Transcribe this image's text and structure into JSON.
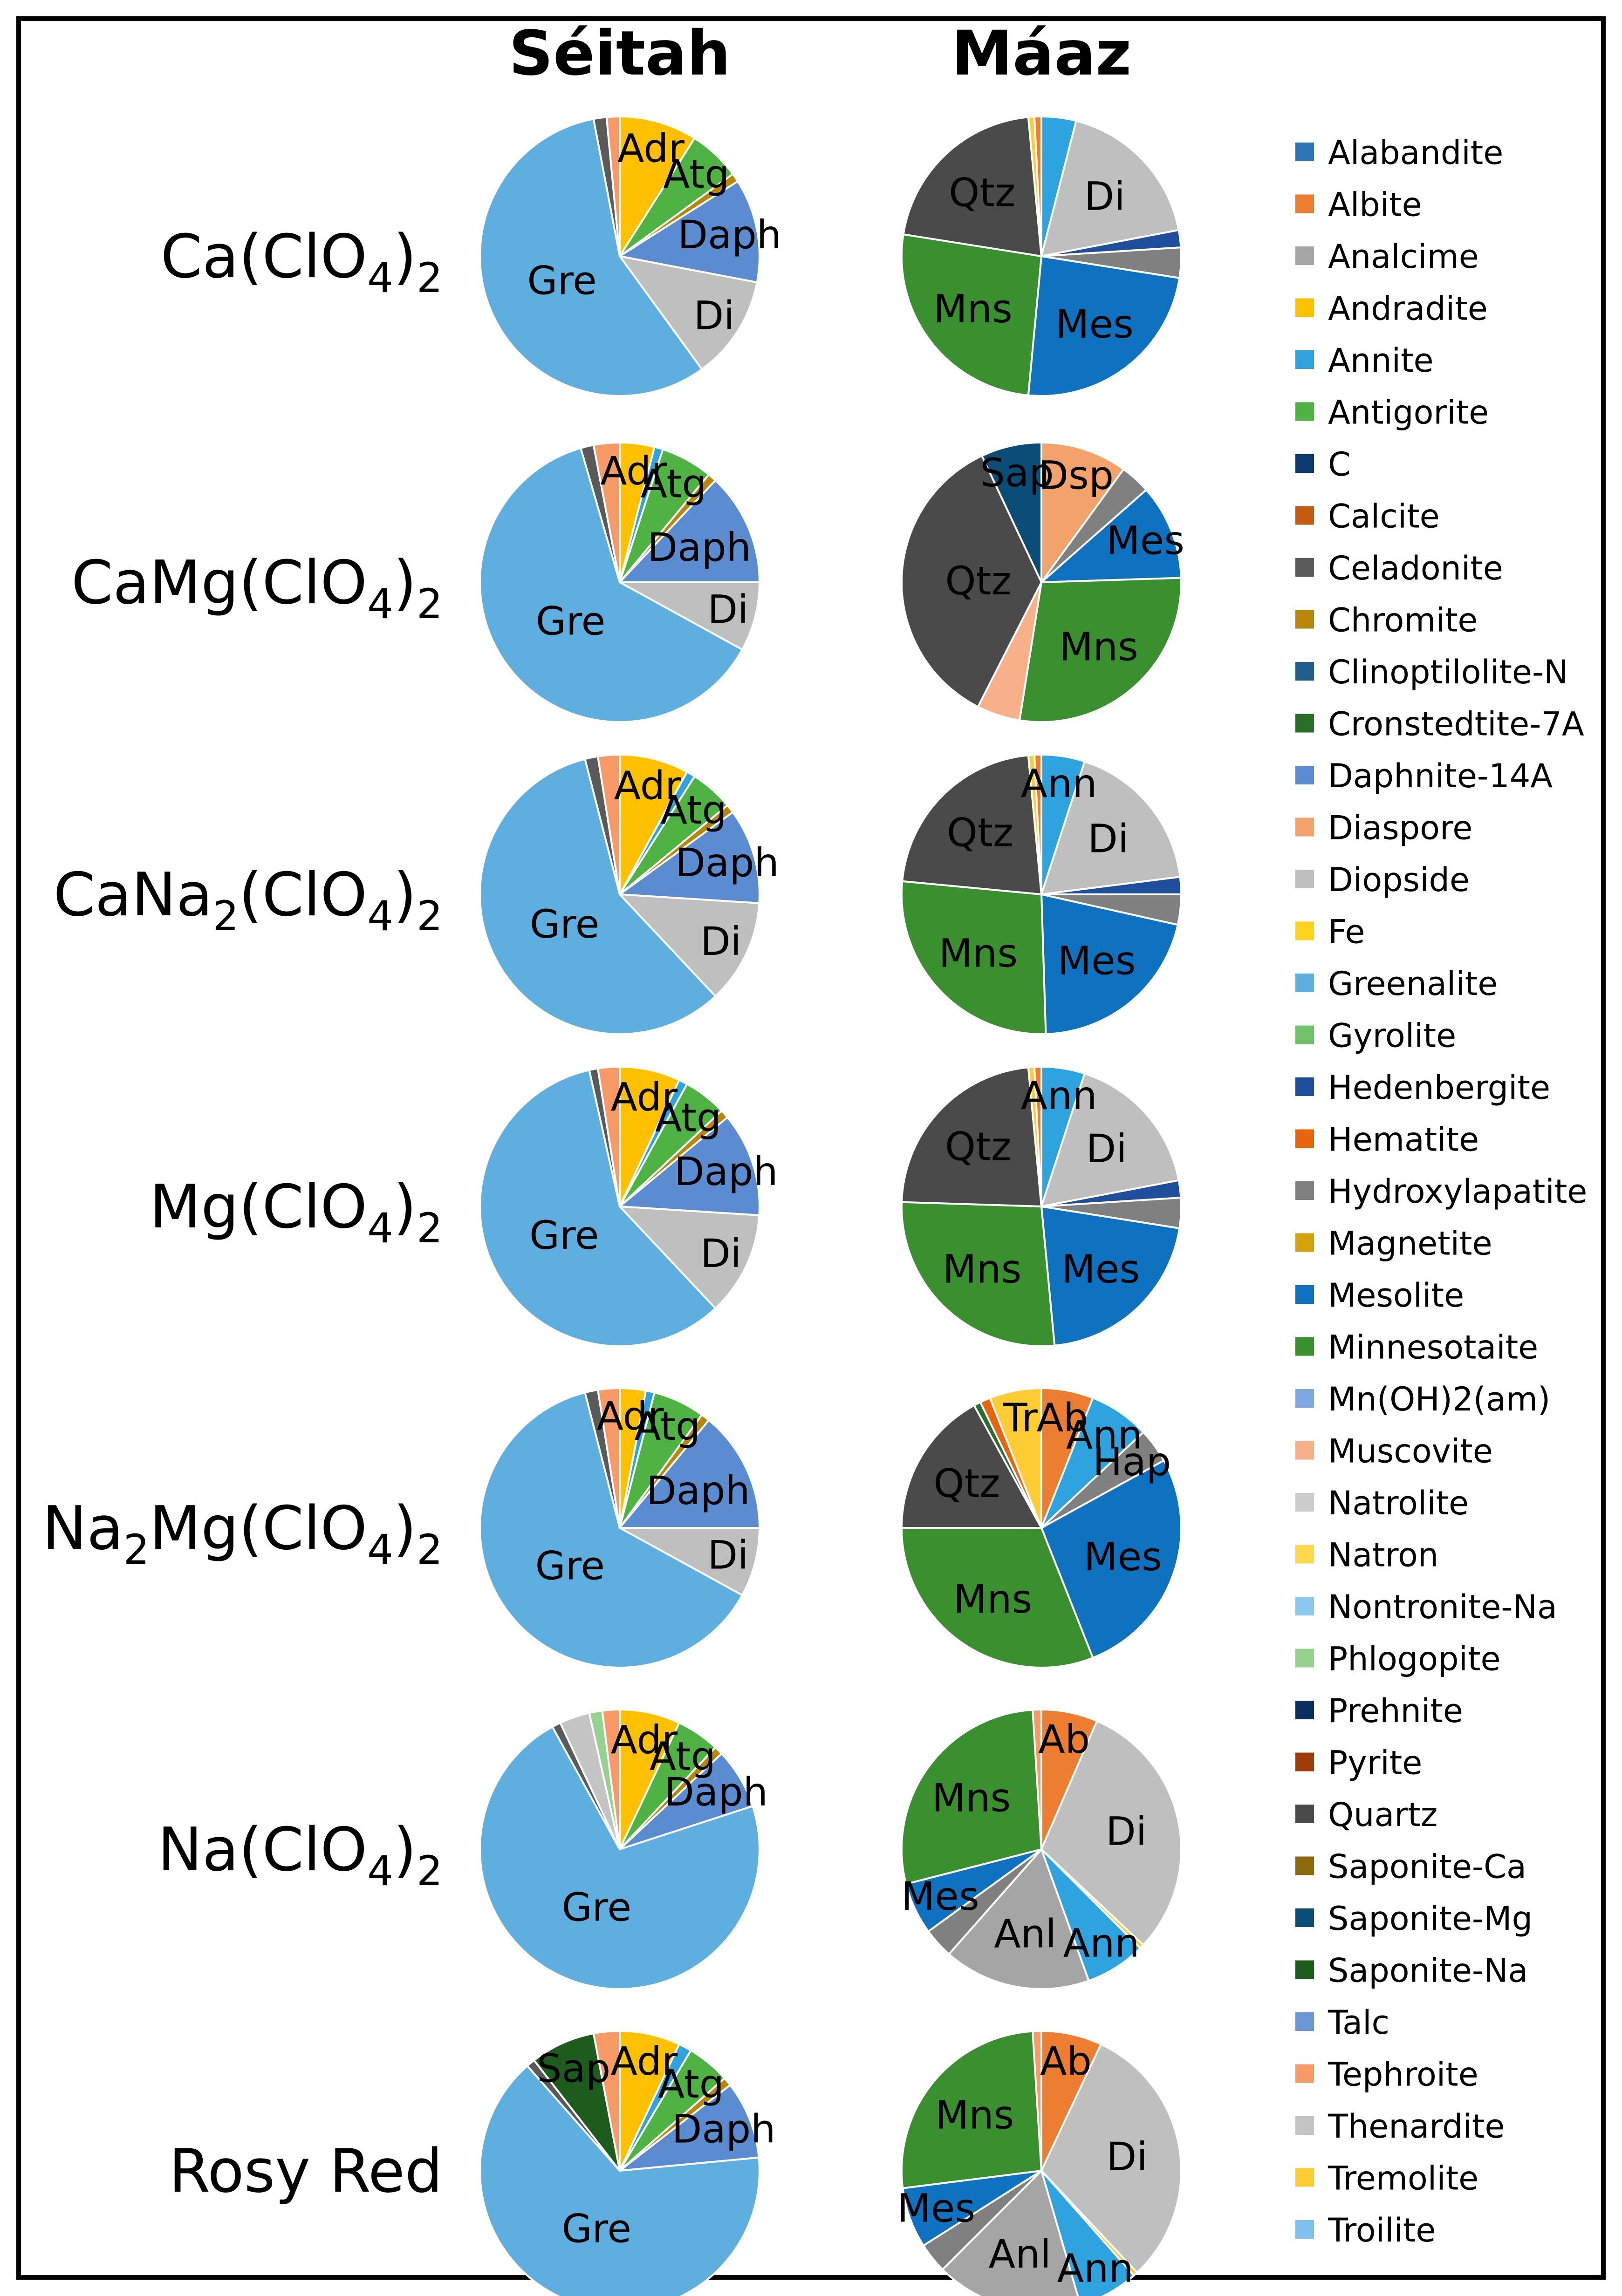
{
  "chart_data": {
    "type": "pie",
    "columns": [
      "Séitah",
      "Máaz"
    ],
    "rows": [
      {
        "label": "Ca(ClO",
        "sub": "4",
        "after": ")",
        "sub2": "2"
      },
      {
        "label": "CaMg(ClO",
        "sub": "4",
        "after": ")",
        "sub2": "2"
      },
      {
        "label": "CaNa",
        "sub": "2",
        "after": "(ClO",
        "sub2": "4",
        "after2": ")",
        "sub3": "2"
      },
      {
        "label": "Mg(ClO",
        "sub": "4",
        "after": ")",
        "sub2": "2"
      },
      {
        "label": "Na",
        "sub": "2",
        "after": "Mg(ClO",
        "sub2": "4",
        "after2": ")",
        "sub3": "2"
      },
      {
        "label": "Na(ClO",
        "sub": "4",
        "after": ")",
        "sub2": "2"
      },
      {
        "label": "Rosy Red"
      }
    ],
    "legend": [
      {
        "name": "Alabandite",
        "color": "#2E75B6"
      },
      {
        "name": "Albite",
        "color": "#ED7D31"
      },
      {
        "name": "Analcime",
        "color": "#A5A5A5"
      },
      {
        "name": "Andradite",
        "color": "#FFC000"
      },
      {
        "name": "Annite",
        "color": "#2EA3E0"
      },
      {
        "name": "Antigorite",
        "color": "#4EB342"
      },
      {
        "name": "C",
        "color": "#0B3A6E"
      },
      {
        "name": "Calcite",
        "color": "#C55A11"
      },
      {
        "name": "Celadonite",
        "color": "#5A5A5A"
      },
      {
        "name": "Chromite",
        "color": "#B8860B"
      },
      {
        "name": "Clinoptilolite-N",
        "color": "#1F5E8C"
      },
      {
        "name": "Cronstedtite-7A",
        "color": "#2A6E2A"
      },
      {
        "name": "Daphnite-14A",
        "color": "#5B8BD0"
      },
      {
        "name": "Diaspore",
        "color": "#F4A26B"
      },
      {
        "name": "Diopside",
        "color": "#BFBFBF"
      },
      {
        "name": "Fe",
        "color": "#FFD21F"
      },
      {
        "name": "Greenalite",
        "color": "#5FAEE0"
      },
      {
        "name": "Gyrolite",
        "color": "#70C16B"
      },
      {
        "name": "Hedenbergite",
        "color": "#1F4E9C"
      },
      {
        "name": "Hematite",
        "color": "#E8650E"
      },
      {
        "name": "Hydroxylapatite",
        "color": "#808080"
      },
      {
        "name": "Magnetite",
        "color": "#D4A20E"
      },
      {
        "name": "Mesolite",
        "color": "#0F72C0"
      },
      {
        "name": "Minnesotaite",
        "color": "#3A8F2E"
      },
      {
        "name": "Mn(OH)2(am)",
        "color": "#80A8E0"
      },
      {
        "name": "Muscovite",
        "color": "#F8B08A"
      },
      {
        "name": "Natrolite",
        "color": "#CCCCCC"
      },
      {
        "name": "Natron",
        "color": "#FFD84D"
      },
      {
        "name": "Nontronite-Na",
        "color": "#8EC7EE"
      },
      {
        "name": "Phlogopite",
        "color": "#96D18F"
      },
      {
        "name": "Prehnite",
        "color": "#0A2E5C"
      },
      {
        "name": "Pyrite",
        "color": "#9E3D0A"
      },
      {
        "name": "Quartz",
        "color": "#4A4A4A"
      },
      {
        "name": "Saponite-Ca",
        "color": "#8A6A0A"
      },
      {
        "name": "Saponite-Mg",
        "color": "#0C4D78"
      },
      {
        "name": "Saponite-Na",
        "color": "#1E5C1E"
      },
      {
        "name": "Talc",
        "color": "#6A96D6"
      },
      {
        "name": "Tephroite",
        "color": "#F79A68"
      },
      {
        "name": "Thenardite",
        "color": "#C4C4C4"
      },
      {
        "name": "Tremolite",
        "color": "#FFCC33"
      },
      {
        "name": "Troilite",
        "color": "#7FC0EE"
      }
    ],
    "pies": [
      {
        "row": 0,
        "column": "Séitah",
        "slices": [
          {
            "mineral": "Andradite",
            "value": 9,
            "label": "Adr"
          },
          {
            "mineral": "Antigorite",
            "value": 6,
            "label": "Atg"
          },
          {
            "mineral": "Chromite",
            "value": 1,
            "label": ""
          },
          {
            "mineral": "Daphnite-14A",
            "value": 12,
            "label": "Daph"
          },
          {
            "mineral": "Diopside",
            "value": 12,
            "label": "Di"
          },
          {
            "mineral": "Greenalite",
            "value": 57,
            "label": "Gre"
          },
          {
            "mineral": "Celadonite",
            "value": 1.5,
            "label": ""
          },
          {
            "mineral": "Tephroite",
            "value": 1.5,
            "label": ""
          }
        ]
      },
      {
        "row": 0,
        "column": "Máaz",
        "slices": [
          {
            "mineral": "Annite",
            "value": 4,
            "label": ""
          },
          {
            "mineral": "Diopside",
            "value": 18,
            "label": "Di"
          },
          {
            "mineral": "Hedenbergite",
            "value": 2,
            "label": ""
          },
          {
            "mineral": "Hydroxylapatite",
            "value": 3.5,
            "label": ""
          },
          {
            "mineral": "Mesolite",
            "value": 24,
            "label": "Mes"
          },
          {
            "mineral": "Minnesotaite",
            "value": 26,
            "label": "Mns"
          },
          {
            "mineral": "Quartz",
            "value": 21,
            "label": "Qtz"
          },
          {
            "mineral": "Tremolite",
            "value": 0.7,
            "label": ""
          },
          {
            "mineral": "Albite",
            "value": 0.8,
            "label": ""
          }
        ]
      },
      {
        "row": 1,
        "column": "Séitah",
        "slices": [
          {
            "mineral": "Andradite",
            "value": 4,
            "label": "Adr"
          },
          {
            "mineral": "Annite",
            "value": 1,
            "label": ""
          },
          {
            "mineral": "Antigorite",
            "value": 6,
            "label": "Atg"
          },
          {
            "mineral": "Chromite",
            "value": 1,
            "label": ""
          },
          {
            "mineral": "Daphnite-14A",
            "value": 13,
            "label": "Daph"
          },
          {
            "mineral": "Diopside",
            "value": 8,
            "label": "Di"
          },
          {
            "mineral": "Greenalite",
            "value": 62.5,
            "label": "Gre"
          },
          {
            "mineral": "Celadonite",
            "value": 1.5,
            "label": ""
          },
          {
            "mineral": "Tephroite",
            "value": 3,
            "label": ""
          }
        ]
      },
      {
        "row": 1,
        "column": "Máaz",
        "slices": [
          {
            "mineral": "Diaspore",
            "value": 10,
            "label": "Dsp"
          },
          {
            "mineral": "Hydroxylapatite",
            "value": 3.5,
            "label": ""
          },
          {
            "mineral": "Mesolite",
            "value": 11,
            "label": "Mes"
          },
          {
            "mineral": "Minnesotaite",
            "value": 28,
            "label": "Mns"
          },
          {
            "mineral": "Muscovite",
            "value": 5,
            "label": ""
          },
          {
            "mineral": "Quartz",
            "value": 35.5,
            "label": "Qtz"
          },
          {
            "mineral": "Saponite-Mg",
            "value": 7,
            "label": "Sap"
          }
        ]
      },
      {
        "row": 2,
        "column": "Séitah",
        "slices": [
          {
            "mineral": "Andradite",
            "value": 8,
            "label": "Adr"
          },
          {
            "mineral": "Annite",
            "value": 1,
            "label": ""
          },
          {
            "mineral": "Antigorite",
            "value": 5,
            "label": "Atg"
          },
          {
            "mineral": "Chromite",
            "value": 1,
            "label": ""
          },
          {
            "mineral": "Daphnite-14A",
            "value": 11,
            "label": "Daph"
          },
          {
            "mineral": "Diopside",
            "value": 12,
            "label": "Di"
          },
          {
            "mineral": "Greenalite",
            "value": 58,
            "label": "Gre"
          },
          {
            "mineral": "Celadonite",
            "value": 1.5,
            "label": ""
          },
          {
            "mineral": "Tephroite",
            "value": 2.5,
            "label": ""
          }
        ]
      },
      {
        "row": 2,
        "column": "Máaz",
        "slices": [
          {
            "mineral": "Annite",
            "value": 5,
            "label": "Ann"
          },
          {
            "mineral": "Diopside",
            "value": 18,
            "label": "Di"
          },
          {
            "mineral": "Hedenbergite",
            "value": 2,
            "label": ""
          },
          {
            "mineral": "Hydroxylapatite",
            "value": 3.5,
            "label": ""
          },
          {
            "mineral": "Mesolite",
            "value": 21,
            "label": "Mes"
          },
          {
            "mineral": "Minnesotaite",
            "value": 27,
            "label": "Mns"
          },
          {
            "mineral": "Quartz",
            "value": 22,
            "label": "Qtz"
          },
          {
            "mineral": "Tremolite",
            "value": 0.7,
            "label": ""
          },
          {
            "mineral": "Albite",
            "value": 0.8,
            "label": ""
          }
        ]
      },
      {
        "row": 3,
        "column": "Séitah",
        "slices": [
          {
            "mineral": "Andradite",
            "value": 7,
            "label": "Adr"
          },
          {
            "mineral": "Annite",
            "value": 1,
            "label": ""
          },
          {
            "mineral": "Antigorite",
            "value": 5,
            "label": "Atg"
          },
          {
            "mineral": "Chromite",
            "value": 1,
            "label": ""
          },
          {
            "mineral": "Daphnite-14A",
            "value": 12,
            "label": "Daph"
          },
          {
            "mineral": "Diopside",
            "value": 12,
            "label": "Di"
          },
          {
            "mineral": "Greenalite",
            "value": 58.5,
            "label": "Gre"
          },
          {
            "mineral": "Celadonite",
            "value": 1,
            "label": ""
          },
          {
            "mineral": "Tephroite",
            "value": 2.5,
            "label": ""
          }
        ]
      },
      {
        "row": 3,
        "column": "Máaz",
        "slices": [
          {
            "mineral": "Annite",
            "value": 5,
            "label": "Ann"
          },
          {
            "mineral": "Diopside",
            "value": 17,
            "label": "Di"
          },
          {
            "mineral": "Hedenbergite",
            "value": 2,
            "label": ""
          },
          {
            "mineral": "Hydroxylapatite",
            "value": 3.5,
            "label": ""
          },
          {
            "mineral": "Mesolite",
            "value": 21,
            "label": "Mes"
          },
          {
            "mineral": "Minnesotaite",
            "value": 27,
            "label": "Mns"
          },
          {
            "mineral": "Quartz",
            "value": 23,
            "label": "Qtz"
          },
          {
            "mineral": "Tremolite",
            "value": 0.7,
            "label": ""
          },
          {
            "mineral": "Albite",
            "value": 0.8,
            "label": ""
          }
        ]
      },
      {
        "row": 4,
        "column": "Séitah",
        "slices": [
          {
            "mineral": "Andradite",
            "value": 3,
            "label": "Adr"
          },
          {
            "mineral": "Annite",
            "value": 1,
            "label": ""
          },
          {
            "mineral": "Antigorite",
            "value": 6,
            "label": "Atg"
          },
          {
            "mineral": "Chromite",
            "value": 1,
            "label": ""
          },
          {
            "mineral": "Daphnite-14A",
            "value": 14,
            "label": "Daph"
          },
          {
            "mineral": "Diopside",
            "value": 8,
            "label": "Di"
          },
          {
            "mineral": "Greenalite",
            "value": 63,
            "label": "Gre"
          },
          {
            "mineral": "Celadonite",
            "value": 1.5,
            "label": ""
          },
          {
            "mineral": "Tephroite",
            "value": 2.5,
            "label": ""
          }
        ]
      },
      {
        "row": 4,
        "column": "Máaz",
        "slices": [
          {
            "mineral": "Albite",
            "value": 6,
            "label": "Ab"
          },
          {
            "mineral": "Annite",
            "value": 7,
            "label": "Ann"
          },
          {
            "mineral": "Hydroxylapatite",
            "value": 4,
            "label": "Hap"
          },
          {
            "mineral": "Mesolite",
            "value": 27,
            "label": "Mes"
          },
          {
            "mineral": "Minnesotaite",
            "value": 31,
            "label": "Mns"
          },
          {
            "mineral": "Quartz",
            "value": 17,
            "label": "Qtz"
          },
          {
            "mineral": "Cronstedtite-7A",
            "value": 0.8,
            "label": ""
          },
          {
            "mineral": "Hematite",
            "value": 1.2,
            "label": ""
          },
          {
            "mineral": "Tremolite",
            "value": 6,
            "label": "Tr"
          }
        ]
      },
      {
        "row": 5,
        "column": "Séitah",
        "slices": [
          {
            "mineral": "Andradite",
            "value": 7,
            "label": "Adr"
          },
          {
            "mineral": "Antigorite",
            "value": 5,
            "label": "Atg"
          },
          {
            "mineral": "Chromite",
            "value": 1,
            "label": ""
          },
          {
            "mineral": "Daphnite-14A",
            "value": 7,
            "label": "Daph"
          },
          {
            "mineral": "Greenalite",
            "value": 72,
            "label": "Gre"
          },
          {
            "mineral": "Celadonite",
            "value": 1,
            "label": ""
          },
          {
            "mineral": "Thenardite",
            "value": 3.5,
            "label": ""
          },
          {
            "mineral": "Phlogopite",
            "value": 1.5,
            "label": ""
          },
          {
            "mineral": "Tephroite",
            "value": 2,
            "label": ""
          }
        ]
      },
      {
        "row": 5,
        "column": "Máaz",
        "slices": [
          {
            "mineral": "Albite",
            "value": 6.5,
            "label": "Ab"
          },
          {
            "mineral": "Diopside",
            "value": 30.5,
            "label": "Di"
          },
          {
            "mineral": "Tremolite",
            "value": 0.5,
            "label": ""
          },
          {
            "mineral": "Annite",
            "value": 7,
            "label": "Ann"
          },
          {
            "mineral": "Analcime",
            "value": 17,
            "label": "Anl"
          },
          {
            "mineral": "Hydroxylapatite",
            "value": 3.5,
            "label": ""
          },
          {
            "mineral": "Mesolite",
            "value": 6,
            "label": "Mes"
          },
          {
            "mineral": "Minnesotaite",
            "value": 28,
            "label": "Mns"
          },
          {
            "mineral": "Tephroite",
            "value": 1,
            "label": ""
          }
        ]
      },
      {
        "row": 6,
        "column": "Séitah",
        "slices": [
          {
            "mineral": "Andradite",
            "value": 7,
            "label": "Adr"
          },
          {
            "mineral": "Annite",
            "value": 1.5,
            "label": ""
          },
          {
            "mineral": "Antigorite",
            "value": 5,
            "label": "Atg"
          },
          {
            "mineral": "Chromite",
            "value": 1,
            "label": ""
          },
          {
            "mineral": "Daphnite-14A",
            "value": 9,
            "label": "Daph"
          },
          {
            "mineral": "Greenalite",
            "value": 65,
            "label": "Gre"
          },
          {
            "mineral": "Celadonite",
            "value": 1,
            "label": ""
          },
          {
            "mineral": "Saponite-Na",
            "value": 7.5,
            "label": "Sap"
          },
          {
            "mineral": "Tephroite",
            "value": 3,
            "label": ""
          }
        ]
      },
      {
        "row": 6,
        "column": "Máaz",
        "slices": [
          {
            "mineral": "Albite",
            "value": 7,
            "label": "Ab"
          },
          {
            "mineral": "Diopside",
            "value": 31,
            "label": "Di"
          },
          {
            "mineral": "Tremolite",
            "value": 0.5,
            "label": ""
          },
          {
            "mineral": "Annite",
            "value": 7,
            "label": "Ann"
          },
          {
            "mineral": "Analcime",
            "value": 17,
            "label": "Anl"
          },
          {
            "mineral": "Hydroxylapatite",
            "value": 3.5,
            "label": ""
          },
          {
            "mineral": "Mesolite",
            "value": 7,
            "label": "Mes"
          },
          {
            "mineral": "Minnesotaite",
            "value": 26,
            "label": "Mns"
          },
          {
            "mineral": "Tephroite",
            "value": 1,
            "label": ""
          }
        ]
      }
    ]
  }
}
